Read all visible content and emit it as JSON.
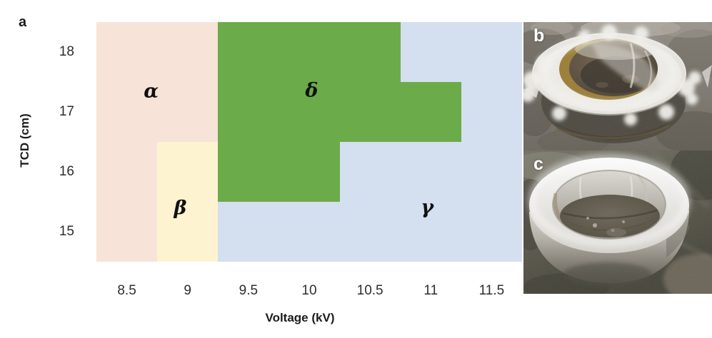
{
  "figure": {
    "panels": {
      "a": {
        "label": "a"
      },
      "b": {
        "label": "b"
      },
      "c": {
        "label": "c"
      }
    }
  },
  "chart_data": {
    "type": "heatmap",
    "title": "",
    "xlabel": "Voltage (kV)",
    "ylabel": "TCD (cm)",
    "x_ticks": [
      8.5,
      9,
      9.5,
      10,
      10.5,
      11,
      11.5
    ],
    "y_ticks": [
      18,
      17,
      16,
      15
    ],
    "x_range": [
      8.25,
      11.75
    ],
    "y_range": [
      14.5,
      18.5
    ],
    "cell_size": {
      "voltage_kv": 0.5,
      "tcd_cm": 1
    },
    "grid_cols_voltage": [
      8.5,
      9,
      9.5,
      10,
      10.5,
      11,
      11.5
    ],
    "grid_rows_tcd_desc": [
      18,
      17,
      16,
      15
    ],
    "grid": [
      [
        "alpha",
        "alpha",
        "delta",
        "delta",
        "delta",
        "gamma",
        "gamma"
      ],
      [
        "alpha",
        "alpha",
        "delta",
        "delta",
        "delta",
        "delta",
        "gamma"
      ],
      [
        "alpha",
        "beta",
        "delta",
        "delta",
        "gamma",
        "gamma",
        "gamma"
      ],
      [
        "alpha",
        "beta",
        "gamma",
        "gamma",
        "gamma",
        "gamma",
        "gamma"
      ]
    ],
    "regions": {
      "alpha": {
        "label": "α",
        "color": "#f8e3d8",
        "label_pos": {
          "voltage": 8.7,
          "tcd": 17.35
        }
      },
      "beta": {
        "label": "β",
        "color": "#fdf3d1",
        "label_pos": {
          "voltage": 8.94,
          "tcd": 15.39
        }
      },
      "delta": {
        "label": "δ",
        "color": "#6cab49",
        "label_pos": {
          "voltage": 10.02,
          "tcd": 17.36
        }
      },
      "gamma": {
        "label": "γ",
        "color": "#d4dff0",
        "label_pos": {
          "voltage": 10.97,
          "tcd": 15.4
        }
      }
    },
    "grid_lines": false,
    "legend": "region labels drawn inside colored areas"
  }
}
